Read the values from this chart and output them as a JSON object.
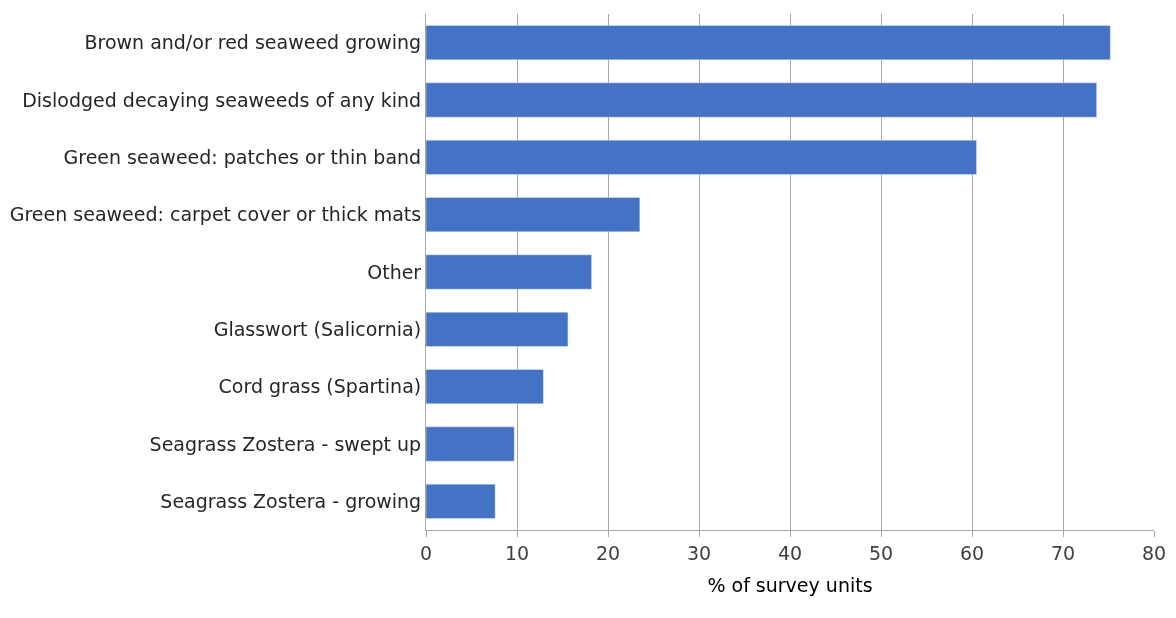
{
  "chart_data": {
    "type": "bar",
    "orientation": "horizontal",
    "xlabel": "% of survey units",
    "categories": [
      "Brown and/or red seaweed growing",
      "Dislodged decaying seaweeds of any kind",
      "Green seaweed: patches or thin band",
      "Green seaweed: carpet cover or thick mats",
      "Other",
      "Glasswort (Salicornia)",
      "Cord grass (Spartina)",
      "Seagrass Zostera - swept up",
      "Seagrass Zostera - growing"
    ],
    "values": [
      75.2,
      73.7,
      60.5,
      23.5,
      18.2,
      15.6,
      12.9,
      9.7,
      7.6
    ],
    "color": "#4472c4",
    "xlim": [
      0,
      80
    ],
    "xticks": [
      0,
      10,
      20,
      30,
      40,
      50,
      60,
      70,
      80
    ],
    "grid": "x"
  }
}
